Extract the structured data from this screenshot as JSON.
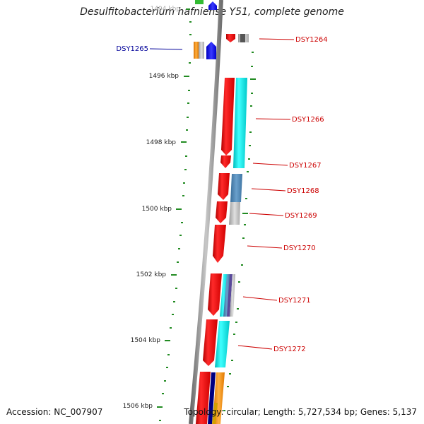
{
  "title": "Desulfitobacterium hafniense Y51, complete genome",
  "footer": {
    "accession": "Accession: NC_007907",
    "topology": "Topology: circular; Length: 5,727,534 bp; Genes: 5,137"
  },
  "axis": {
    "ticks": [
      {
        "label": "1494 kbp",
        "pos_kbp": 1494
      },
      {
        "label": "1496 kbp",
        "pos_kbp": 1496
      },
      {
        "label": "1498 kbp",
        "pos_kbp": 1498
      },
      {
        "label": "1500 kbp",
        "pos_kbp": 1500
      },
      {
        "label": "1502 kbp",
        "pos_kbp": 1502
      },
      {
        "label": "1504 kbp",
        "pos_kbp": 1504
      },
      {
        "label": "1506 kbp",
        "pos_kbp": 1506
      }
    ]
  },
  "genes": [
    {
      "name": "DSY1264",
      "side": "right",
      "color": "#cc0000"
    },
    {
      "name": "DSY1265",
      "side": "left",
      "color": "#000099"
    },
    {
      "name": "DSY1266",
      "side": "right",
      "color": "#cc0000"
    },
    {
      "name": "DSY1267",
      "side": "right",
      "color": "#cc0000"
    },
    {
      "name": "DSY1268",
      "side": "right",
      "color": "#cc0000"
    },
    {
      "name": "DSY1269",
      "side": "right",
      "color": "#cc0000"
    },
    {
      "name": "DSY1270",
      "side": "right",
      "color": "#cc0000"
    },
    {
      "name": "DSY1271",
      "side": "right",
      "color": "#cc0000"
    },
    {
      "name": "DSY1272",
      "side": "right",
      "color": "#cc0000"
    }
  ],
  "colors": {
    "backbone": "#888888",
    "tick": "#228b22",
    "gene_red": "#ff0000",
    "gene_blue": "#0000ff",
    "cyan": "#00e5e5",
    "steel": "#4682b4",
    "gray": "#b0b0b0",
    "orange": "#ff8c00"
  }
}
